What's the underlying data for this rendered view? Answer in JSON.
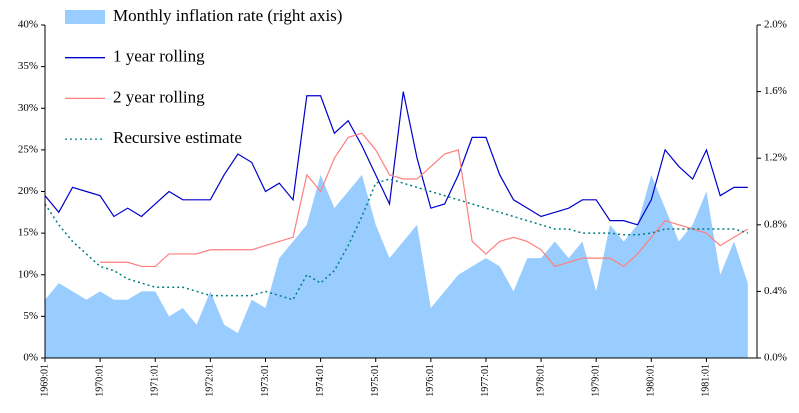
{
  "chart_data": {
    "type": "line",
    "categories": [
      "1969:01",
      null,
      null,
      null,
      "1970:01",
      null,
      null,
      null,
      "1971:01",
      null,
      null,
      null,
      "1972:01",
      null,
      null,
      null,
      "1973:01",
      null,
      null,
      null,
      "1974:01",
      null,
      null,
      null,
      "1975:01",
      null,
      null,
      null,
      "1976:01",
      null,
      null,
      null,
      "1977:01",
      null,
      null,
      null,
      "1978:01",
      null,
      null,
      null,
      "1979:01",
      null,
      null,
      null,
      "1980:01",
      null,
      null,
      null,
      "1981:01",
      null,
      null,
      null
    ],
    "series": [
      {
        "name": "Monthly inflation rate (right axis)",
        "kind": "area",
        "axis": "y2",
        "color": "#99ccff",
        "values": [
          0.35,
          0.45,
          0.4,
          0.35,
          0.4,
          0.35,
          0.35,
          0.4,
          0.4,
          0.25,
          0.3,
          0.2,
          0.4,
          0.2,
          0.15,
          0.35,
          0.3,
          0.6,
          0.7,
          0.8,
          1.1,
          0.9,
          1.0,
          1.1,
          0.8,
          0.6,
          0.7,
          0.8,
          0.3,
          0.4,
          0.5,
          0.55,
          0.6,
          0.55,
          0.4,
          0.6,
          0.6,
          0.7,
          0.6,
          0.7,
          0.4,
          0.8,
          0.7,
          0.8,
          1.1,
          0.9,
          0.7,
          0.8,
          1.0,
          0.5,
          0.7,
          0.45
        ]
      },
      {
        "name": "1 year rolling",
        "kind": "line",
        "linestyle": "solid",
        "color": "#0000cc",
        "values": [
          19.5,
          17.5,
          20.5,
          20,
          19.5,
          17,
          18,
          17,
          18.5,
          20,
          19,
          19,
          19,
          22,
          24.5,
          23.5,
          20,
          21,
          19,
          31.5,
          31.5,
          27,
          28.5,
          25.5,
          22,
          18.5,
          32,
          24,
          18,
          18.5,
          22,
          26.5,
          26.5,
          22,
          19,
          18,
          17,
          17.5,
          18,
          19,
          19,
          16.5,
          16.5,
          16,
          19,
          25,
          23,
          21.5,
          25,
          19.5,
          20.5,
          20.5
        ]
      },
      {
        "name": "2 year rolling",
        "kind": "line",
        "linestyle": "solid",
        "color": "#ff7f7f",
        "values": [
          null,
          null,
          null,
          null,
          11.5,
          11.5,
          11.5,
          11,
          11,
          12.5,
          12.5,
          12.5,
          13,
          13,
          13,
          13,
          13.5,
          14,
          14.5,
          22,
          20,
          24,
          26.5,
          27,
          25,
          22,
          21.5,
          21.5,
          23,
          24.5,
          25,
          14,
          12.5,
          14,
          14.5,
          14,
          13,
          11,
          11.5,
          12,
          12,
          12,
          11,
          12.5,
          14.5,
          16.5,
          16,
          15.5,
          15,
          13.5,
          14.5,
          15.5
        ]
      },
      {
        "name": "Recursive estimate",
        "kind": "line",
        "linestyle": "dotted",
        "color": "#008080",
        "values": [
          18.5,
          16,
          14,
          12.5,
          11,
          10.5,
          9.5,
          9,
          8.5,
          8.5,
          8.5,
          8,
          7.5,
          7.5,
          7.5,
          7.5,
          8,
          7.5,
          7,
          10,
          9,
          10.5,
          13.5,
          17,
          21,
          21.5,
          21,
          20.5,
          20,
          19.5,
          19,
          18.5,
          18,
          17.5,
          17,
          16.5,
          16,
          15.5,
          15.5,
          15,
          15,
          15,
          14.8,
          14.8,
          15,
          15.5,
          15.5,
          15.5,
          15.5,
          15.5,
          15.5,
          15
        ]
      }
    ],
    "ylim": [
      0,
      40
    ],
    "yticks": [
      {
        "value": 0,
        "label": "0%"
      },
      {
        "value": 5,
        "label": "5%"
      },
      {
        "value": 10,
        "label": "10%"
      },
      {
        "value": 15,
        "label": "15%"
      },
      {
        "value": 20,
        "label": "20%"
      },
      {
        "value": 25,
        "label": "25%"
      },
      {
        "value": 30,
        "label": "30%"
      },
      {
        "value": 35,
        "label": "35%"
      },
      {
        "value": 40,
        "label": "40%"
      }
    ],
    "y2lim": [
      0,
      2.0
    ],
    "y2ticks": [
      {
        "value": 0,
        "label": "0.0%"
      },
      {
        "value": 0.4,
        "label": "0.4%"
      },
      {
        "value": 0.8,
        "label": "0.8%"
      },
      {
        "value": 1.2,
        "label": "1.2%"
      },
      {
        "value": 1.6,
        "label": "1.6%"
      },
      {
        "value": 2.0,
        "label": "2.0%"
      }
    ],
    "grid": false,
    "legend": "upper left"
  }
}
